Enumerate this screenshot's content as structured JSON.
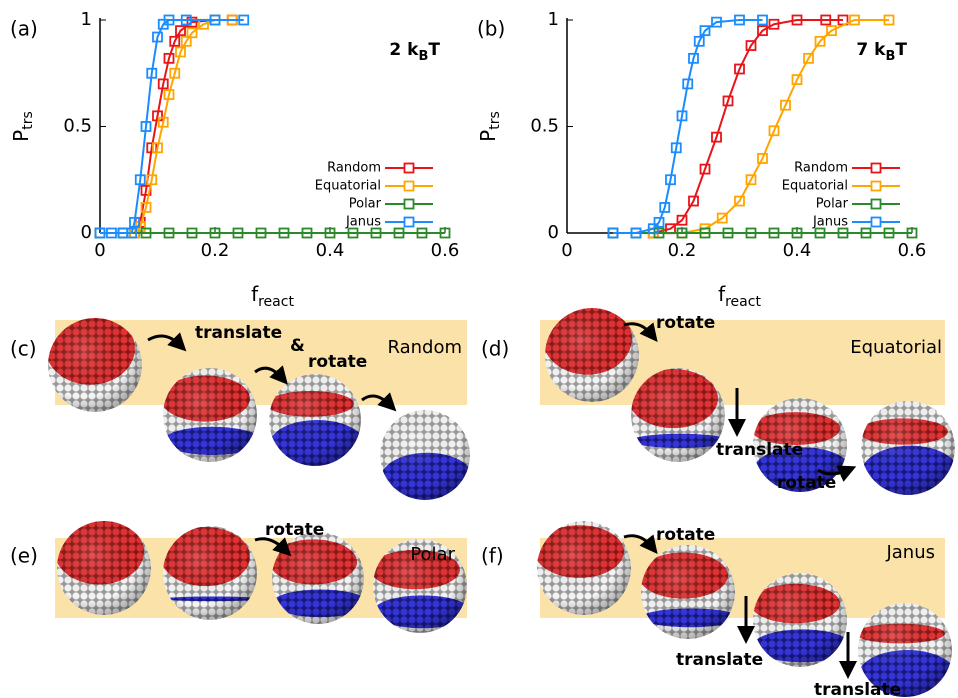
{
  "chart_data": [
    {
      "type": "line",
      "panel_label": "(a)",
      "annotation": [
        "2 k",
        "B",
        "T"
      ],
      "xlabel": [
        "f",
        "react"
      ],
      "ylabel": [
        "P",
        "trs"
      ],
      "xlim": [
        0,
        0.6
      ],
      "xticks": [
        0,
        0.2,
        0.4,
        0.6
      ],
      "ylim": [
        0,
        1
      ],
      "yticks": [
        0,
        0.5,
        1
      ],
      "legend": "lower right",
      "series": [
        {
          "name": "Random",
          "color": "#e8141a",
          "x": [
            0,
            0.04,
            0.06,
            0.07,
            0.08,
            0.09,
            0.1,
            0.11,
            0.12,
            0.13,
            0.14,
            0.16,
            0.2,
            0.23
          ],
          "values": [
            0,
            0,
            0,
            0.05,
            0.2,
            0.4,
            0.55,
            0.7,
            0.82,
            0.9,
            0.95,
            0.99,
            1,
            1
          ]
        },
        {
          "name": "Equatorial",
          "color": "#ffa500",
          "x": [
            0,
            0.06,
            0.07,
            0.08,
            0.09,
            0.1,
            0.11,
            0.12,
            0.13,
            0.14,
            0.15,
            0.16,
            0.18,
            0.2,
            0.23
          ],
          "values": [
            0,
            0,
            0.03,
            0.12,
            0.25,
            0.4,
            0.52,
            0.65,
            0.75,
            0.85,
            0.9,
            0.94,
            0.98,
            1,
            1
          ]
        },
        {
          "name": "Polar",
          "color": "#2a8a2a",
          "x": [
            0,
            0.04,
            0.08,
            0.12,
            0.16,
            0.2,
            0.24,
            0.28,
            0.32,
            0.36,
            0.4,
            0.44,
            0.48,
            0.52,
            0.56,
            0.6
          ],
          "values": [
            0,
            0,
            0,
            0,
            0,
            0,
            0,
            0,
            0,
            0,
            0,
            0,
            0,
            0,
            0,
            0
          ]
        },
        {
          "name": "Janus",
          "color": "#1a8cff",
          "x": [
            0,
            0.02,
            0.04,
            0.055,
            0.06,
            0.07,
            0.08,
            0.09,
            0.1,
            0.11,
            0.12,
            0.15,
            0.2,
            0.25
          ],
          "values": [
            0,
            0,
            0,
            0,
            0.05,
            0.25,
            0.5,
            0.75,
            0.92,
            0.98,
            1,
            1,
            1,
            1
          ]
        }
      ]
    },
    {
      "type": "line",
      "panel_label": "(b)",
      "annotation": [
        "7 k",
        "B",
        "T"
      ],
      "xlabel": [
        "f",
        "react"
      ],
      "ylabel": [
        "P",
        "trs"
      ],
      "xlim": [
        0,
        0.6
      ],
      "xticks": [
        0,
        0.2,
        0.4,
        0.6
      ],
      "ylim": [
        0,
        1
      ],
      "yticks": [
        0,
        0.5,
        1
      ],
      "legend": "lower right",
      "series": [
        {
          "name": "Random",
          "color": "#e8141a",
          "x": [
            0.08,
            0.15,
            0.18,
            0.2,
            0.22,
            0.24,
            0.26,
            0.28,
            0.3,
            0.32,
            0.34,
            0.36,
            0.4,
            0.45,
            0.48
          ],
          "values": [
            0,
            0,
            0.02,
            0.06,
            0.15,
            0.3,
            0.45,
            0.62,
            0.77,
            0.88,
            0.95,
            0.98,
            1,
            1,
            1
          ]
        },
        {
          "name": "Equatorial",
          "color": "#ffa500",
          "x": [
            0.15,
            0.2,
            0.24,
            0.27,
            0.3,
            0.32,
            0.34,
            0.36,
            0.38,
            0.4,
            0.42,
            0.44,
            0.46,
            0.5,
            0.56
          ],
          "values": [
            0,
            0,
            0.02,
            0.07,
            0.15,
            0.25,
            0.35,
            0.48,
            0.6,
            0.72,
            0.82,
            0.9,
            0.95,
            1,
            1
          ]
        },
        {
          "name": "Polar",
          "color": "#2a8a2a",
          "x": [
            0.08,
            0.12,
            0.16,
            0.2,
            0.24,
            0.28,
            0.32,
            0.36,
            0.4,
            0.44,
            0.48,
            0.52,
            0.56,
            0.6
          ],
          "values": [
            0,
            0,
            0,
            0,
            0,
            0,
            0,
            0,
            0,
            0,
            0,
            0,
            0,
            0
          ]
        },
        {
          "name": "Janus",
          "color": "#1a8cff",
          "x": [
            0.08,
            0.12,
            0.15,
            0.16,
            0.17,
            0.18,
            0.19,
            0.2,
            0.21,
            0.22,
            0.23,
            0.24,
            0.26,
            0.3,
            0.34
          ],
          "values": [
            0,
            0,
            0.02,
            0.05,
            0.12,
            0.25,
            0.4,
            0.55,
            0.7,
            0.82,
            0.9,
            0.95,
            0.99,
            1,
            1
          ]
        }
      ]
    }
  ],
  "illustrations": [
    {
      "label": "(c)",
      "name": "Random",
      "annotations": [
        "translate",
        "&",
        "rotate"
      ]
    },
    {
      "label": "(d)",
      "name": "Equatorial",
      "annotations": [
        "rotate",
        "translate",
        "rotate"
      ]
    },
    {
      "label": "(e)",
      "name": "Polar",
      "annotations": [
        "rotate"
      ]
    },
    {
      "label": "(f)",
      "name": "Janus",
      "annotations": [
        "rotate",
        "translate",
        "translate"
      ]
    }
  ]
}
